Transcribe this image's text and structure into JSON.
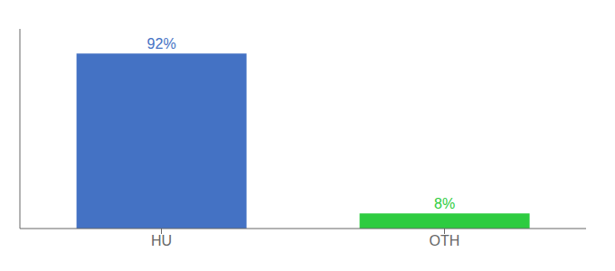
{
  "chart_data": {
    "type": "bar",
    "categories": [
      "HU",
      "OTH"
    ],
    "values": [
      92,
      8
    ],
    "colors": [
      "#4472c4",
      "#2ecc40"
    ],
    "ylim": [
      0,
      105
    ],
    "data_labels": true,
    "value_labels": [
      "92%",
      "8%"
    ],
    "tick_labels": "x"
  }
}
